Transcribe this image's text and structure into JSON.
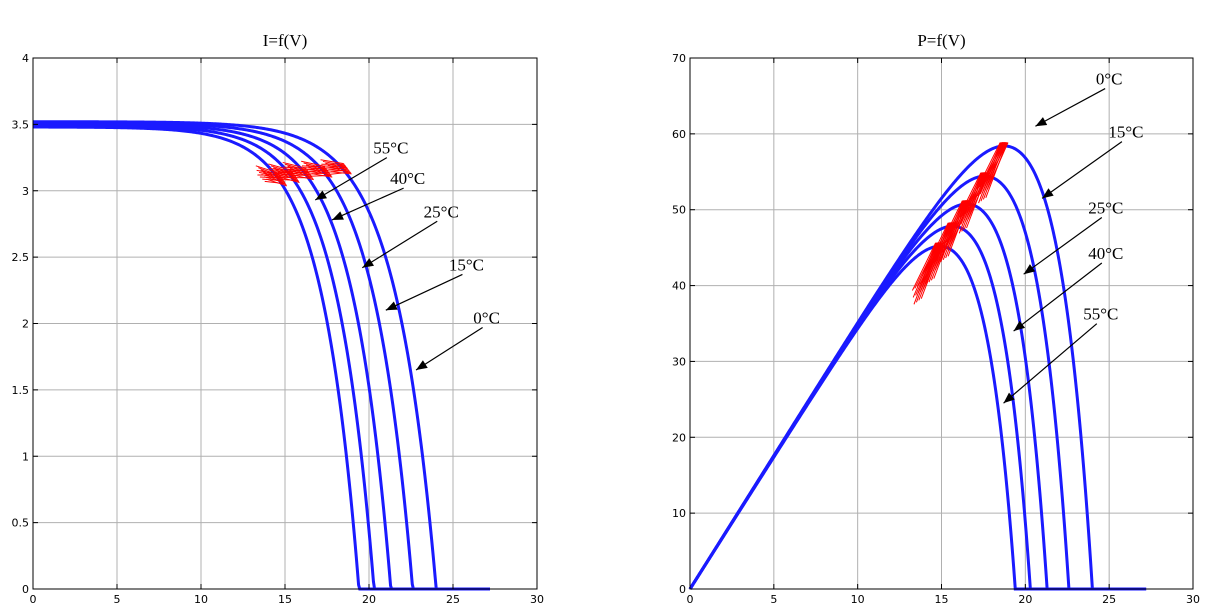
{
  "chart_data": [
    {
      "type": "line",
      "title": "I=f(V)",
      "xlabel": "",
      "ylabel": "",
      "xlim": [
        0,
        30
      ],
      "ylim": [
        0,
        4
      ],
      "x_ticks": [
        0,
        5,
        10,
        15,
        20,
        25,
        30
      ],
      "y_ticks": [
        0,
        0.5,
        1,
        1.5,
        2,
        2.5,
        3,
        3.5,
        4
      ],
      "x_tick_labels": [
        "0",
        "5",
        "10",
        "15",
        "20",
        "25",
        "30"
      ],
      "y_tick_labels": [
        "0",
        "0.5",
        "1",
        "1.5",
        "2",
        "2.5",
        "3",
        "3.5",
        "4"
      ],
      "grid": true,
      "series_color": "#1a1aff",
      "mppt_trace_color": "#ff0000",
      "series": [
        {
          "name": "0°C",
          "isc": 3.52,
          "voc": 24.0,
          "knee": 1.9
        },
        {
          "name": "15°C",
          "isc": 3.51,
          "voc": 22.6,
          "knee": 1.85
        },
        {
          "name": "25°C",
          "isc": 3.5,
          "voc": 21.3,
          "knee": 1.8
        },
        {
          "name": "40°C",
          "isc": 3.49,
          "voc": 20.3,
          "knee": 1.75
        },
        {
          "name": "55°C",
          "isc": 3.48,
          "voc": 19.4,
          "knee": 1.7
        }
      ],
      "annotations": [
        {
          "text": "55°C",
          "text_at": [
            21.3,
            3.28
          ],
          "arrow_to": [
            16.8,
            2.93
          ]
        },
        {
          "text": "40°C",
          "text_at": [
            22.3,
            3.05
          ],
          "arrow_to": [
            17.8,
            2.78
          ]
        },
        {
          "text": "25°C",
          "text_at": [
            24.3,
            2.8
          ],
          "arrow_to": [
            19.6,
            2.42
          ]
        },
        {
          "text": "15°C",
          "text_at": [
            25.8,
            2.4
          ],
          "arrow_to": [
            21.0,
            2.1
          ]
        },
        {
          "text": "0°C",
          "text_at": [
            27.0,
            2.0
          ],
          "arrow_to": [
            22.8,
            1.65
          ]
        }
      ]
    },
    {
      "type": "line",
      "title": "P=f(V)",
      "xlabel": "",
      "ylabel": "",
      "xlim": [
        0,
        30
      ],
      "ylim": [
        0,
        70
      ],
      "x_ticks": [
        0,
        5,
        10,
        15,
        20,
        25,
        30
      ],
      "y_ticks": [
        0,
        10,
        20,
        30,
        40,
        50,
        60,
        70
      ],
      "x_tick_labels": [
        "0",
        "5",
        "10",
        "15",
        "20",
        "25",
        "30"
      ],
      "y_tick_labels": [
        "0",
        "10",
        "20",
        "30",
        "40",
        "50",
        "60",
        "70"
      ],
      "grid": true,
      "series_color": "#1a1aff",
      "mppt_trace_color": "#ff0000",
      "series": [
        {
          "name": "0°C",
          "isc": 3.52,
          "voc": 24.0,
          "knee": 1.9
        },
        {
          "name": "15°C",
          "isc": 3.51,
          "voc": 22.6,
          "knee": 1.85
        },
        {
          "name": "25°C",
          "isc": 3.5,
          "voc": 21.3,
          "knee": 1.8
        },
        {
          "name": "40°C",
          "isc": 3.49,
          "voc": 20.3,
          "knee": 1.75
        },
        {
          "name": "55°C",
          "isc": 3.48,
          "voc": 19.4,
          "knee": 1.7
        }
      ],
      "annotations": [
        {
          "text": "0°C",
          "text_at": [
            25.0,
            66.5
          ],
          "arrow_to": [
            20.6,
            61.0
          ]
        },
        {
          "text": "15°C",
          "text_at": [
            26.0,
            59.5
          ],
          "arrow_to": [
            21.0,
            51.5
          ]
        },
        {
          "text": "25°C",
          "text_at": [
            24.8,
            49.5
          ],
          "arrow_to": [
            19.9,
            41.5
          ]
        },
        {
          "text": "40°C",
          "text_at": [
            24.8,
            43.5
          ],
          "arrow_to": [
            19.3,
            34.0
          ]
        },
        {
          "text": "55°C",
          "text_at": [
            24.5,
            35.5
          ],
          "arrow_to": [
            18.7,
            24.5
          ]
        }
      ]
    }
  ]
}
